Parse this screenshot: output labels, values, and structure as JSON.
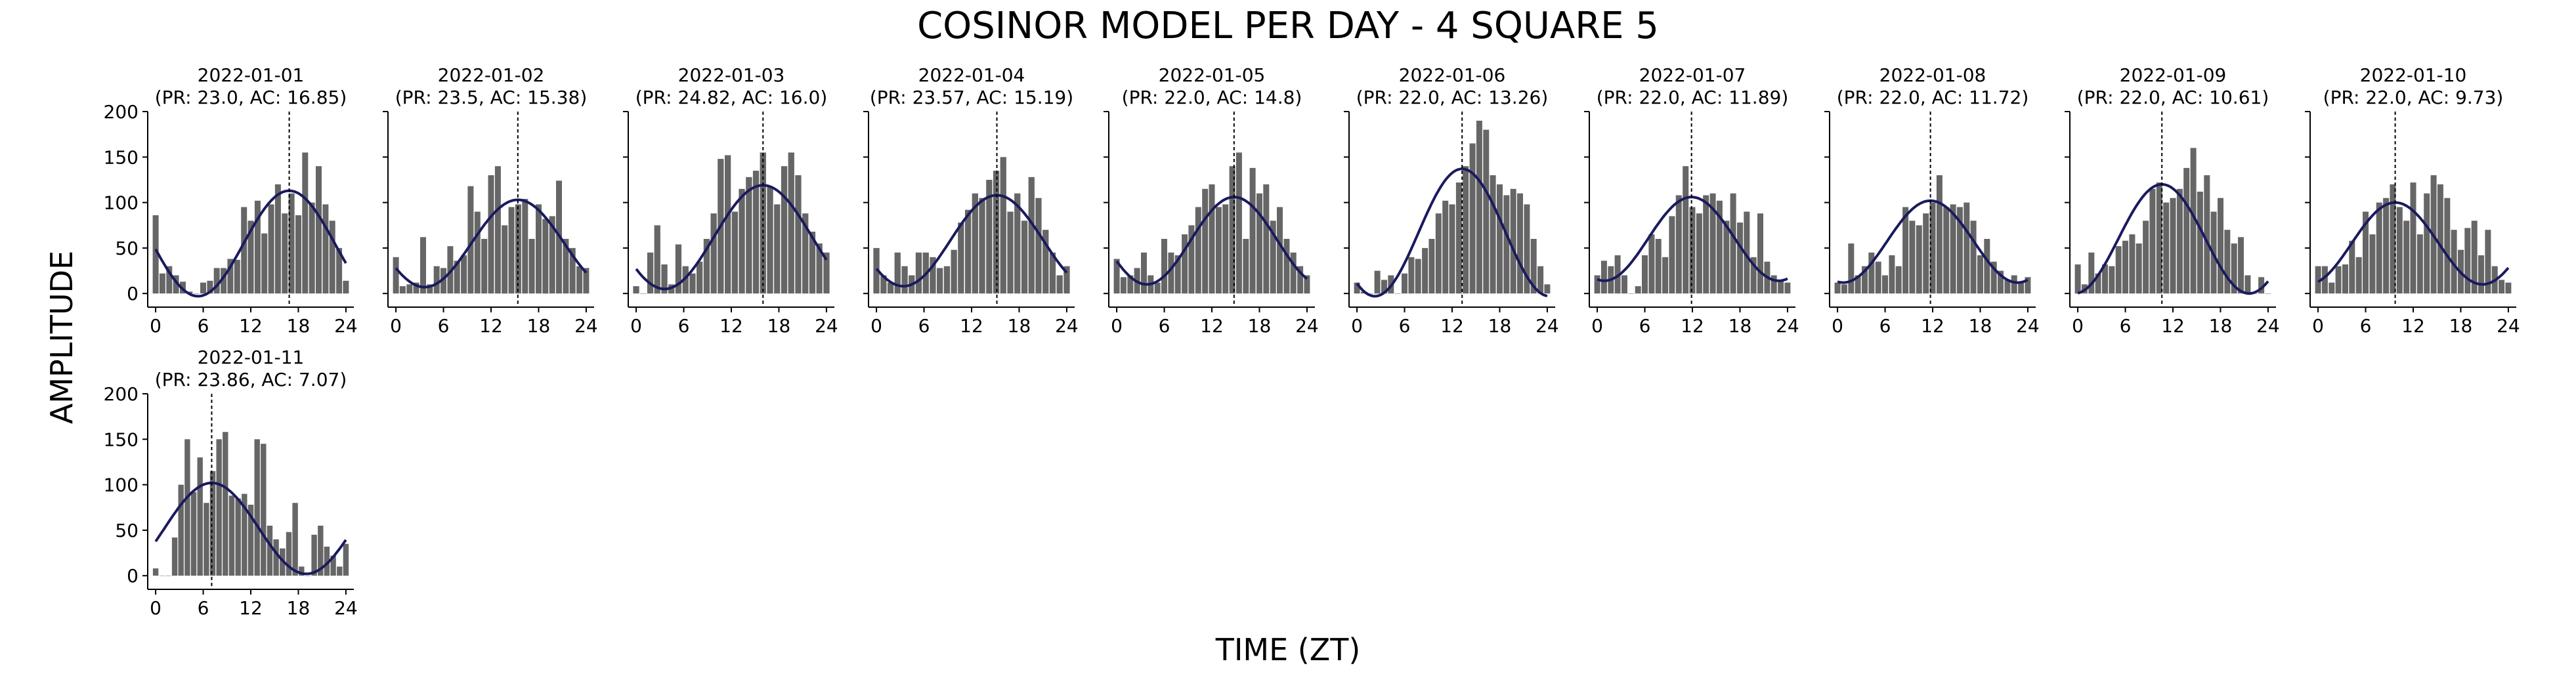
{
  "figure": {
    "title": "COSINOR MODEL PER DAY - 4 SQUARE 5",
    "xlabel": "TIME (ZT)",
    "ylabel": "AMPLITUDE"
  },
  "colors": {
    "bar": "#666666",
    "curve": "#1a1a5e",
    "acrophase_line": "#000000",
    "axis": "#000000"
  },
  "axes": {
    "xlim": [
      -1,
      25
    ],
    "ylim": [
      -15,
      200
    ],
    "xticks": [
      0,
      6,
      12,
      18,
      24
    ],
    "yticks": [
      0,
      50,
      100,
      150,
      200
    ]
  },
  "chart_data": [
    {
      "type": "bar",
      "title": "2022-01-01",
      "subtitle": "(PR: 23.0, AC: 16.85)",
      "period": 23.0,
      "acrophase": 16.85,
      "mesor": 55,
      "amplitude": 58,
      "values": [
        86,
        22,
        30,
        20,
        13,
        2,
        0,
        12,
        14,
        28,
        28,
        38,
        37,
        95,
        80,
        102,
        66,
        98,
        120,
        88,
        110,
        86,
        155,
        100,
        140,
        98,
        80,
        50,
        14
      ]
    },
    {
      "type": "bar",
      "title": "2022-01-02",
      "subtitle": "(PR: 23.5, AC: 15.38)",
      "period": 23.5,
      "acrophase": 15.38,
      "mesor": 55,
      "amplitude": 48,
      "values": [
        40,
        8,
        10,
        12,
        62,
        10,
        30,
        28,
        52,
        36,
        42,
        118,
        90,
        60,
        130,
        140,
        75,
        95,
        98,
        104,
        60,
        98,
        82,
        85,
        124,
        60,
        50,
        30,
        28
      ]
    },
    {
      "type": "bar",
      "title": "2022-01-03",
      "subtitle": "(PR: 24.82, AC: 16.0)",
      "period": 24.82,
      "acrophase": 16.0,
      "mesor": 62,
      "amplitude": 57,
      "values": [
        8,
        0,
        45,
        75,
        32,
        10,
        54,
        30,
        22,
        35,
        60,
        88,
        148,
        152,
        90,
        115,
        128,
        135,
        155,
        118,
        98,
        140,
        155,
        130,
        88,
        68,
        55,
        45
      ]
    },
    {
      "type": "bar",
      "title": "2022-01-04",
      "subtitle": "(PR: 23.57, AC: 15.19)",
      "period": 23.57,
      "acrophase": 15.19,
      "mesor": 58,
      "amplitude": 50,
      "values": [
        50,
        20,
        12,
        45,
        30,
        20,
        45,
        45,
        40,
        28,
        30,
        48,
        78,
        92,
        110,
        105,
        125,
        135,
        150,
        90,
        110,
        80,
        128,
        105,
        70,
        45,
        20,
        30
      ]
    },
    {
      "type": "bar",
      "title": "2022-01-05",
      "subtitle": "(PR: 22.0, AC: 14.8)",
      "period": 22.0,
      "acrophase": 14.8,
      "mesor": 58,
      "amplitude": 48,
      "values": [
        38,
        18,
        20,
        28,
        45,
        20,
        12,
        60,
        45,
        42,
        65,
        75,
        95,
        115,
        120,
        95,
        98,
        140,
        155,
        60,
        138,
        110,
        120,
        80,
        95,
        60,
        45,
        30,
        20
      ]
    },
    {
      "type": "bar",
      "title": "2022-01-06",
      "subtitle": "(PR: 22.0, AC: 13.26)",
      "period": 22.0,
      "acrophase": 13.26,
      "mesor": 67,
      "amplitude": 70,
      "values": [
        12,
        2,
        0,
        25,
        15,
        20,
        0,
        22,
        40,
        38,
        50,
        60,
        88,
        102,
        98,
        122,
        140,
        165,
        190,
        180,
        130,
        120,
        108,
        115,
        110,
        98,
        60,
        30,
        10
      ]
    },
    {
      "type": "bar",
      "title": "2022-01-07",
      "subtitle": "(PR: 22.0, AC: 11.89)",
      "period": 22.0,
      "acrophase": 11.89,
      "mesor": 60,
      "amplitude": 46,
      "values": [
        20,
        36,
        30,
        42,
        20,
        0,
        8,
        42,
        65,
        60,
        40,
        85,
        108,
        140,
        95,
        88,
        108,
        110,
        102,
        80,
        110,
        78,
        90,
        40,
        88,
        35,
        20,
        15,
        12
      ]
    },
    {
      "type": "bar",
      "title": "2022-01-08",
      "subtitle": "(PR: 22.0, AC: 11.72)",
      "period": 22.0,
      "acrophase": 11.72,
      "mesor": 57,
      "amplitude": 45,
      "values": [
        12,
        10,
        55,
        20,
        30,
        45,
        35,
        20,
        42,
        30,
        95,
        80,
        75,
        88,
        100,
        130,
        95,
        98,
        95,
        100,
        80,
        42,
        60,
        35,
        25,
        15,
        20,
        12,
        18
      ]
    },
    {
      "type": "bar",
      "title": "2022-01-09",
      "subtitle": "(PR: 22.0, AC: 10.61)",
      "period": 22.0,
      "acrophase": 10.61,
      "mesor": 60,
      "amplitude": 60,
      "values": [
        32,
        10,
        45,
        22,
        32,
        30,
        52,
        58,
        65,
        55,
        80,
        115,
        122,
        100,
        105,
        115,
        138,
        160,
        112,
        130,
        90,
        105,
        70,
        55,
        62,
        20,
        0,
        18,
        0
      ]
    },
    {
      "type": "bar",
      "title": "2022-01-10",
      "subtitle": "(PR: 22.0, AC: 9.73)",
      "period": 22.0,
      "acrophase": 9.73,
      "mesor": 55,
      "amplitude": 45,
      "values": [
        30,
        30,
        12,
        30,
        32,
        58,
        40,
        90,
        65,
        100,
        105,
        120,
        95,
        80,
        122,
        65,
        110,
        130,
        120,
        105,
        70,
        48,
        72,
        80,
        42,
        70,
        30,
        15,
        12
      ]
    },
    {
      "type": "bar",
      "title": "2022-01-11",
      "subtitle": "(PR: 23.86, AC: 7.07)",
      "period": 23.86,
      "acrophase": 7.07,
      "mesor": 52,
      "amplitude": 50,
      "values": [
        8,
        0,
        0,
        42,
        100,
        150,
        92,
        130,
        80,
        115,
        150,
        158,
        88,
        85,
        90,
        78,
        150,
        145,
        55,
        40,
        30,
        48,
        80,
        10,
        0,
        45,
        55,
        32,
        22,
        10,
        35
      ]
    }
  ]
}
